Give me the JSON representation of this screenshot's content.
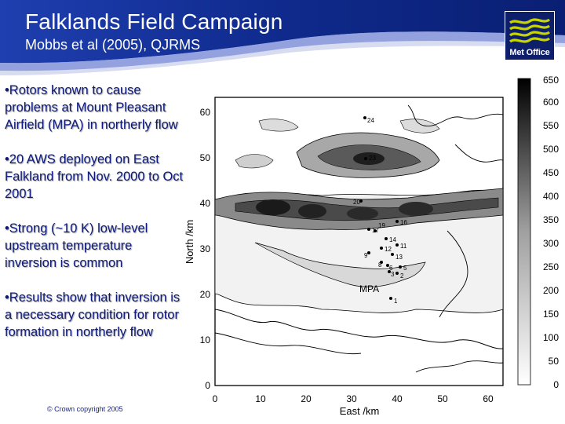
{
  "header": {
    "title": "Falklands Field Campaign",
    "subtitle": "Mobbs et al (2005), QJRMS",
    "logo_text": "Met Office"
  },
  "bullets": [
    "•Rotors known to cause problems at Mount Pleasant Airfield (MPA) in northerly flow",
    "•20 AWS deployed on East Falkland from Nov. 2000 to Oct 2001",
    "•Strong (~10 K) low-level upstream temperature inversion is common",
    "•Results show that inversion is a necessary condition for rotor formation in northerly flow"
  ],
  "footer": {
    "copyright": "© Crown copyright 2005"
  },
  "figure": {
    "xlabel": "East /km",
    "ylabel": "North /km",
    "x_ticks": [
      "0",
      "10",
      "20",
      "30",
      "40",
      "50",
      "60"
    ],
    "y_ticks": [
      "0",
      "10",
      "20",
      "30",
      "40",
      "50",
      "60"
    ],
    "colorbar_labels": [
      "0",
      "50",
      "100",
      "150",
      "200",
      "250",
      "300",
      "350",
      "400",
      "450",
      "500",
      "550",
      "600",
      "650"
    ],
    "place_label": "MPA",
    "station_labels": [
      "24",
      "23",
      "20",
      "17",
      "19",
      "16",
      "14",
      "12",
      "11",
      "9",
      "13",
      "8",
      "6",
      "5",
      "3",
      "2",
      "1"
    ],
    "colors": {
      "banner": "#0f2a8c",
      "logo_bg": "#0d1f6a",
      "logo_waves": "#c6d400",
      "bullet_text": "#0d1a7a"
    }
  }
}
